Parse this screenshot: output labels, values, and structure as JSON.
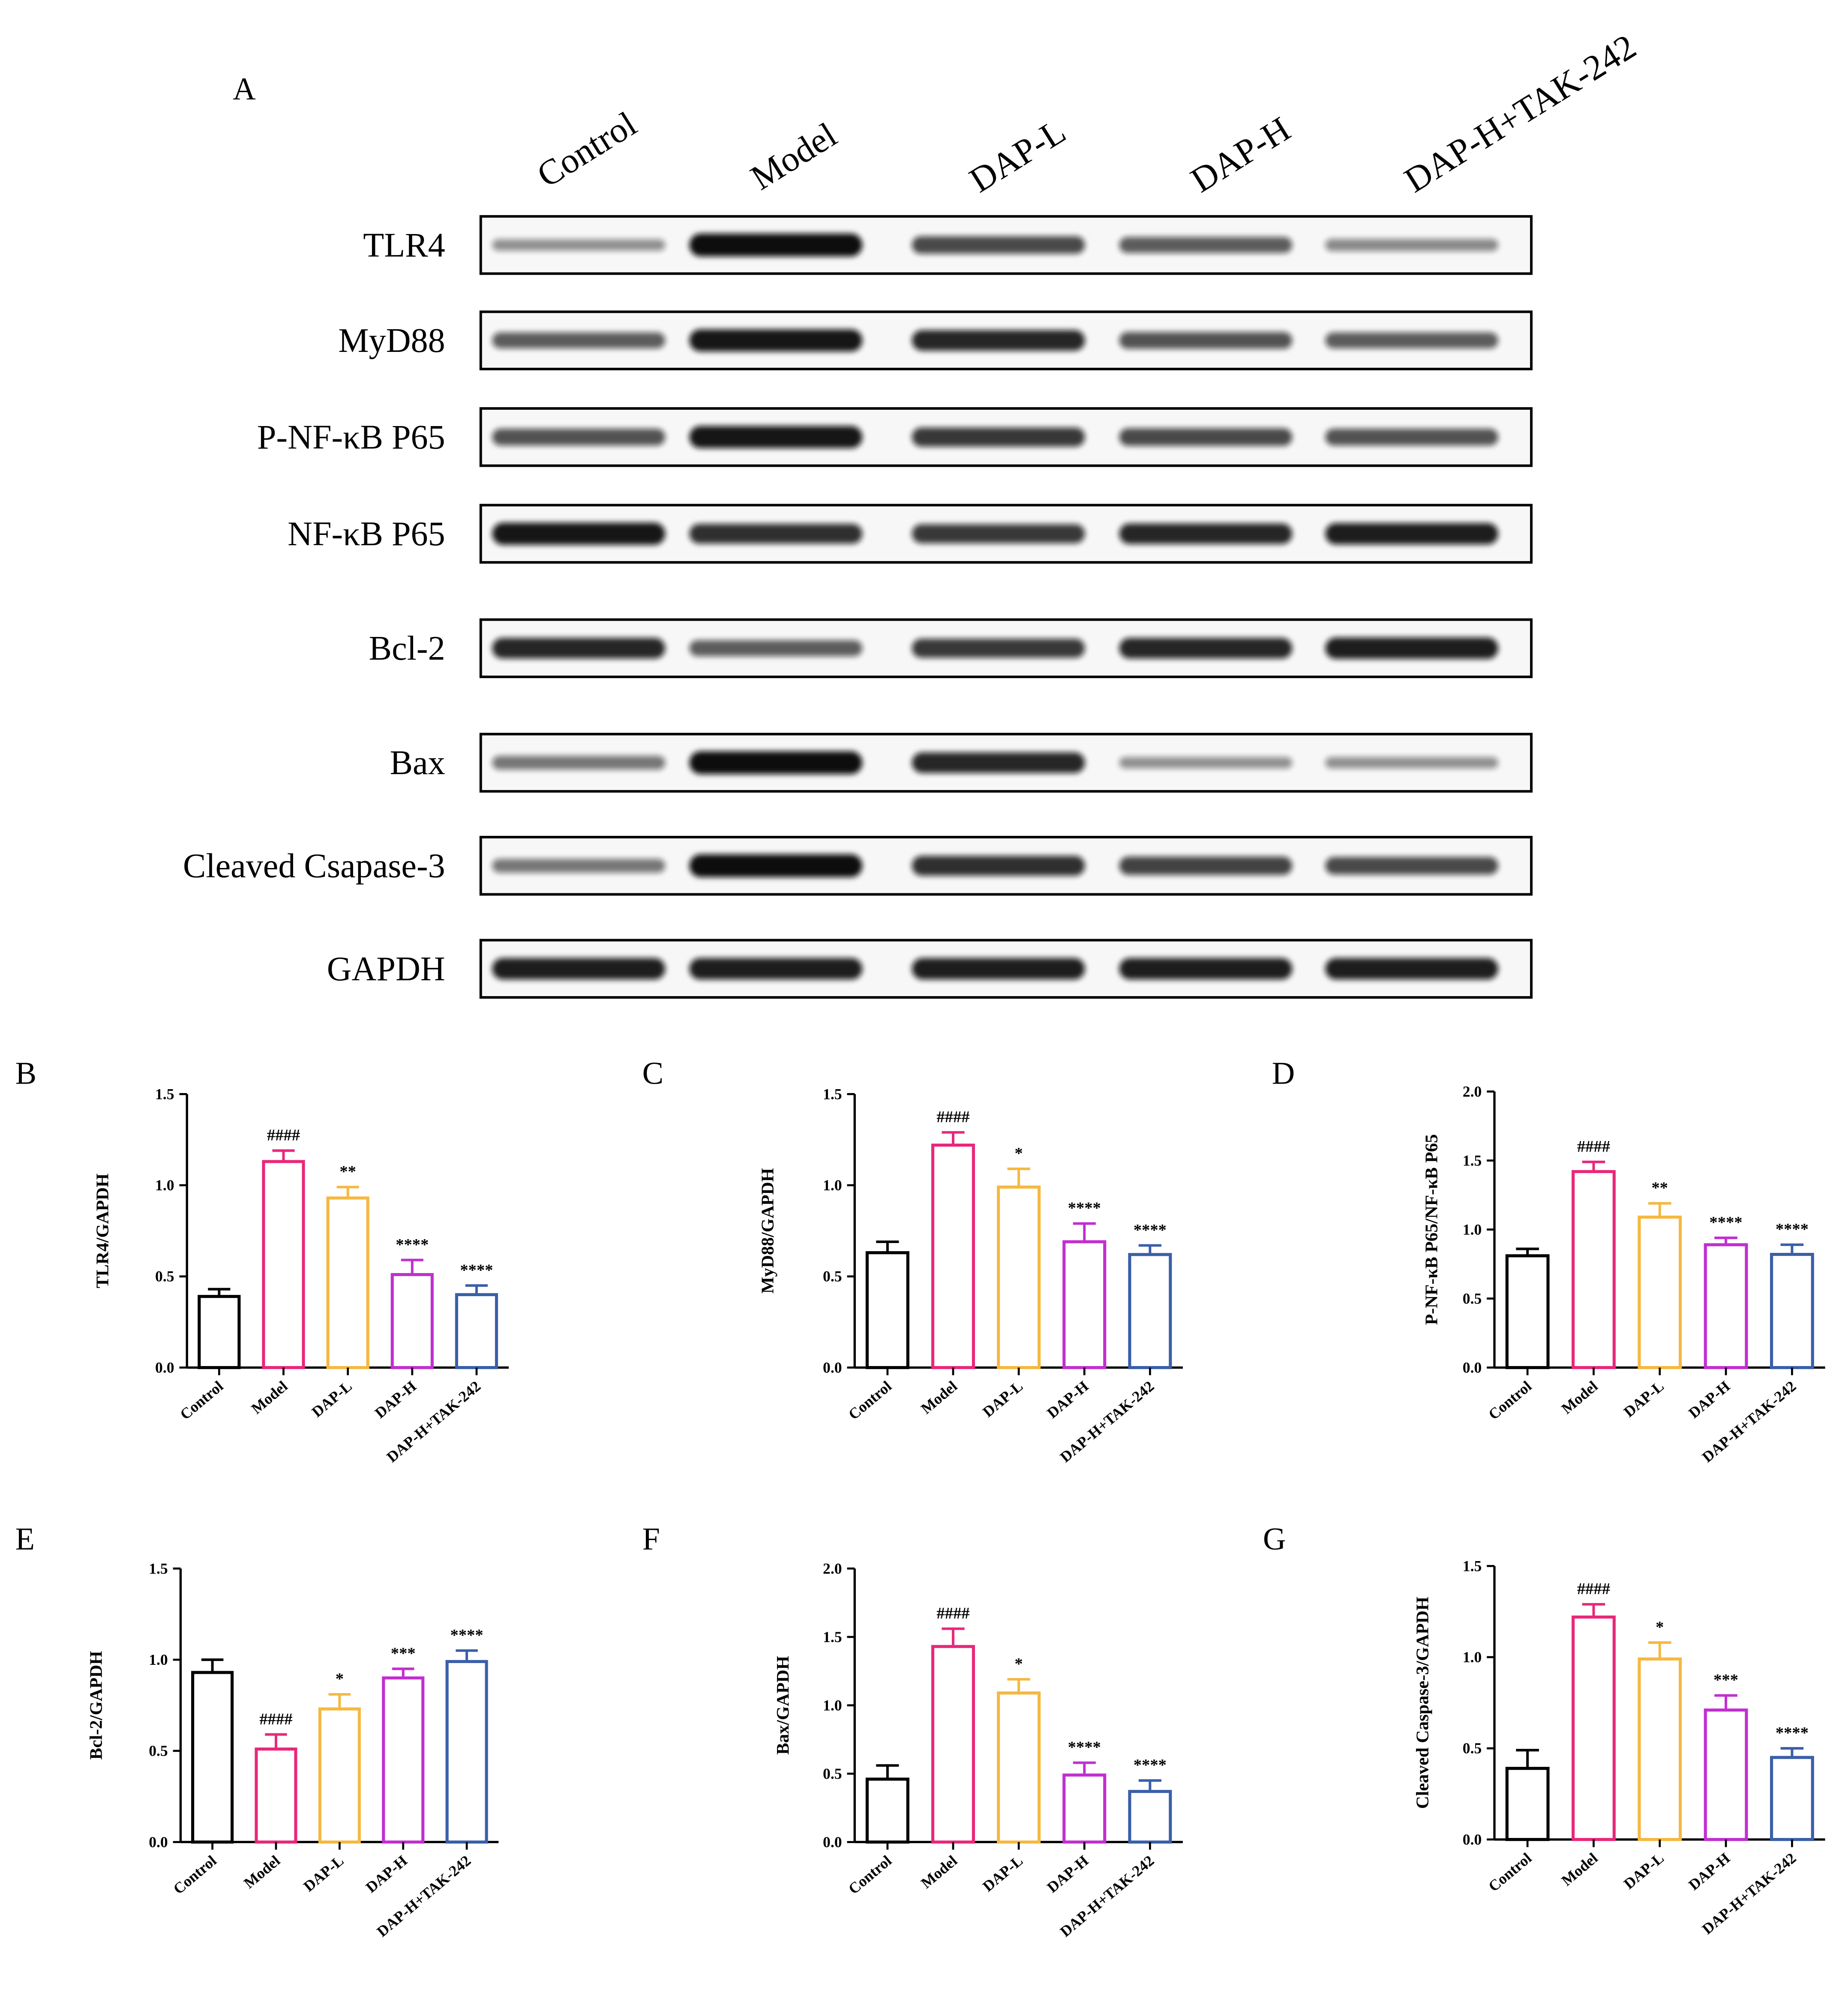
{
  "figure": {
    "panel_a_letter": "A",
    "lanes": [
      "Control",
      "Model",
      "DAP-L",
      "DAP-H",
      "DAP-H+TAK-242"
    ],
    "blot_rows": [
      {
        "label": "TLR4",
        "intensity": [
          0.25,
          1.0,
          0.65,
          0.55,
          0.3
        ]
      },
      {
        "label": "MyD88",
        "intensity": [
          0.55,
          0.95,
          0.85,
          0.6,
          0.55
        ]
      },
      {
        "label": "P-NF-κB P65",
        "intensity": [
          0.6,
          0.95,
          0.75,
          0.65,
          0.6
        ]
      },
      {
        "label": "NF-κB P65",
        "intensity": [
          0.95,
          0.8,
          0.75,
          0.85,
          0.9
        ]
      },
      {
        "label": "Bcl-2",
        "intensity": [
          0.85,
          0.55,
          0.75,
          0.85,
          0.9
        ]
      },
      {
        "label": "Bax",
        "intensity": [
          0.4,
          1.0,
          0.85,
          0.25,
          0.25
        ]
      },
      {
        "label": "Cleaved Csapase-3",
        "intensity": [
          0.4,
          1.0,
          0.8,
          0.7,
          0.65
        ]
      },
      {
        "label": "GAPDH",
        "intensity": [
          0.9,
          0.9,
          0.9,
          0.9,
          0.9
        ]
      }
    ]
  },
  "colors": {
    "series": [
      "#000000",
      "#e8287a",
      "#f5b841",
      "#c12fd0",
      "#3a5fa8"
    ]
  },
  "chart_data": [
    {
      "type": "bar",
      "panel": "B",
      "categories": [
        "Control",
        "Model",
        "DAP-L",
        "DAP-H",
        "DAP-H+TAK-242"
      ],
      "values": [
        0.39,
        1.13,
        0.93,
        0.51,
        0.4
      ],
      "errors": [
        0.04,
        0.06,
        0.06,
        0.08,
        0.05
      ],
      "significance": [
        "",
        "####",
        "**",
        "****",
        "****"
      ],
      "ylabel": "TLR4/GAPDH",
      "ylim": [
        0,
        1.5
      ],
      "yticks": [
        "0.0",
        "0.5",
        "1.0",
        "1.5"
      ]
    },
    {
      "type": "bar",
      "panel": "C",
      "categories": [
        "Control",
        "Model",
        "DAP-L",
        "DAP-H",
        "DAP-H+TAK-242"
      ],
      "values": [
        0.63,
        1.22,
        0.99,
        0.69,
        0.62
      ],
      "errors": [
        0.06,
        0.07,
        0.1,
        0.1,
        0.05
      ],
      "significance": [
        "",
        "####",
        "*",
        "****",
        "****"
      ],
      "ylabel": "MyD88/GAPDH",
      "ylim": [
        0,
        1.5
      ],
      "yticks": [
        "0.0",
        "0.5",
        "1.0",
        "1.5"
      ]
    },
    {
      "type": "bar",
      "panel": "D",
      "categories": [
        "Control",
        "Model",
        "DAP-L",
        "DAP-H",
        "DAP-H+TAK-242"
      ],
      "values": [
        0.81,
        1.42,
        1.09,
        0.89,
        0.82
      ],
      "errors": [
        0.05,
        0.07,
        0.1,
        0.05,
        0.07
      ],
      "significance": [
        "",
        "####",
        "**",
        "****",
        "****"
      ],
      "ylabel": "P-NF-κB P65/NF-κB P65",
      "ylim": [
        0,
        2.0
      ],
      "yticks": [
        "0.0",
        "0.5",
        "1.0",
        "1.5",
        "2.0"
      ]
    },
    {
      "type": "bar",
      "panel": "E",
      "categories": [
        "Control",
        "Model",
        "DAP-L",
        "DAP-H",
        "DAP-H+TAK-242"
      ],
      "values": [
        0.93,
        0.51,
        0.73,
        0.9,
        0.99
      ],
      "errors": [
        0.07,
        0.08,
        0.08,
        0.05,
        0.06
      ],
      "significance": [
        "",
        "####",
        "*",
        "***",
        "****"
      ],
      "ylabel": "Bcl-2/GAPDH",
      "ylim": [
        0,
        1.5
      ],
      "yticks": [
        "0.0",
        "0.5",
        "1.0",
        "1.5"
      ]
    },
    {
      "type": "bar",
      "panel": "F",
      "categories": [
        "Control",
        "Model",
        "DAP-L",
        "DAP-H",
        "DAP-H+TAK-242"
      ],
      "values": [
        0.46,
        1.43,
        1.09,
        0.49,
        0.37
      ],
      "errors": [
        0.1,
        0.13,
        0.1,
        0.09,
        0.08
      ],
      "significance": [
        "",
        "####",
        "*",
        "****",
        "****"
      ],
      "ylabel": "Bax/GAPDH",
      "ylim": [
        0,
        2.0
      ],
      "yticks": [
        "0.0",
        "0.5",
        "1.0",
        "1.5",
        "2.0"
      ]
    },
    {
      "type": "bar",
      "panel": "G",
      "categories": [
        "Control",
        "Model",
        "DAP-L",
        "DAP-H",
        "DAP-H+TAK-242"
      ],
      "values": [
        0.39,
        1.22,
        0.99,
        0.71,
        0.45
      ],
      "errors": [
        0.1,
        0.07,
        0.09,
        0.08,
        0.05
      ],
      "significance": [
        "",
        "####",
        "*",
        "***",
        "****"
      ],
      "ylabel": "Cleaved Caspase-3/GAPDH",
      "ylim": [
        0,
        1.5
      ],
      "yticks": [
        "0.0",
        "0.5",
        "1.0",
        "1.5"
      ]
    }
  ]
}
